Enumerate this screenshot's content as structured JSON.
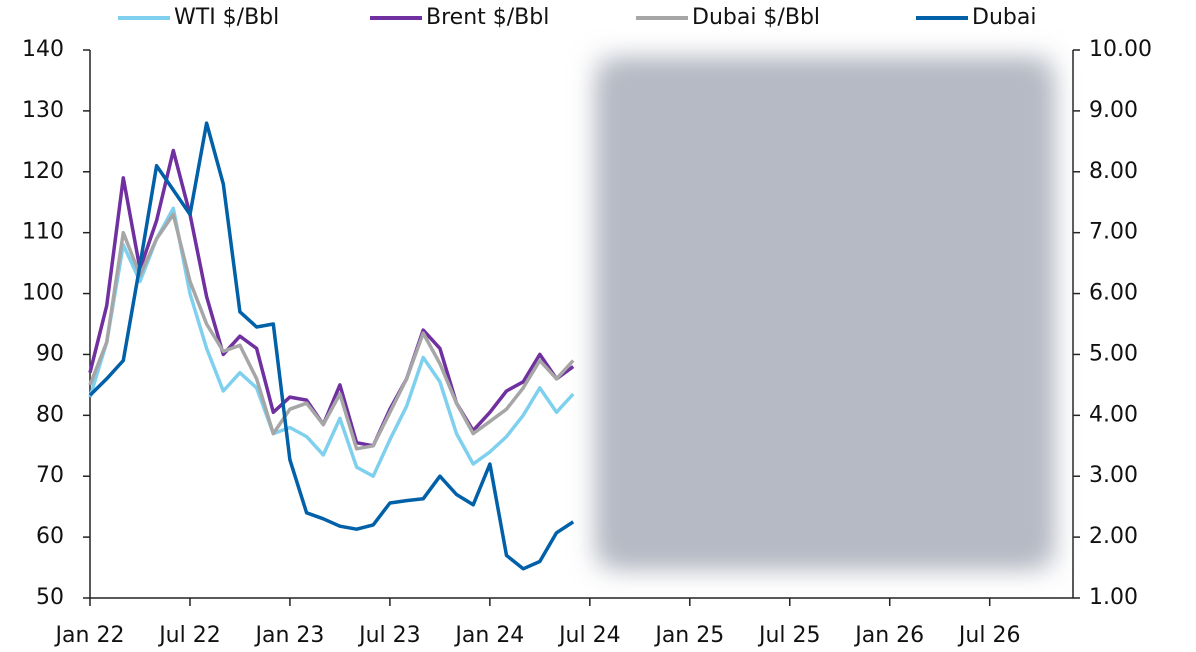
{
  "chart_data": {
    "type": "line",
    "categories": [
      "Jan 22",
      null,
      null,
      null,
      null,
      null,
      "Jul 22",
      null,
      null,
      null,
      null,
      null,
      "Jan 23",
      null,
      null,
      null,
      null,
      null,
      "Jul 23",
      null,
      null,
      null,
      null,
      null,
      "Jan 24",
      null,
      null,
      null,
      null,
      null,
      "Jul 24",
      null,
      null,
      null,
      null,
      null,
      "Jan 25",
      null,
      null,
      null,
      null,
      null,
      "Jul 25",
      null,
      null,
      null,
      null,
      null,
      "Jan 26",
      null,
      null,
      null,
      null,
      null,
      "Jul 26",
      null,
      null,
      null,
      null,
      null
    ],
    "series": [
      {
        "name": "WTI $/Bbl",
        "color": "#7fd0ef",
        "values": [
          83,
          92,
          108,
          102,
          109,
          114,
          100,
          91,
          84,
          87,
          84.5,
          77,
          78,
          76.5,
          73.5,
          79.5,
          71.5,
          70,
          76,
          81.5,
          89.5,
          85.5,
          77,
          72,
          74,
          76.5,
          80,
          84.5,
          80.5,
          83.5,
          null,
          null,
          null,
          null,
          null,
          null,
          null,
          null,
          null,
          null,
          null,
          null,
          null,
          null,
          null,
          null,
          null,
          null,
          null,
          null,
          null,
          null,
          null,
          null,
          null,
          null,
          null,
          null,
          null,
          null
        ]
      },
      {
        "name": "Brent $/Bbl",
        "color": "#7030a0",
        "values": [
          87,
          98,
          119,
          104,
          112,
          123.5,
          113,
          99.5,
          90,
          93,
          91,
          80.5,
          83,
          82.5,
          78.5,
          85,
          75.5,
          75,
          81,
          86,
          94,
          91,
          82,
          77.5,
          80.5,
          84,
          85.5,
          90,
          86,
          88,
          null,
          null,
          null,
          null,
          null,
          null,
          null,
          null,
          null,
          null,
          null,
          null,
          null,
          null,
          null,
          null,
          null,
          null,
          null,
          null,
          null,
          null,
          null,
          null,
          null,
          null,
          null,
          null,
          null,
          null
        ]
      },
      {
        "name": "Dubai $/Bbl",
        "color": "#a6a6a6",
        "values": [
          85,
          92,
          110,
          103,
          109,
          113,
          102,
          95,
          90.5,
          91.5,
          86,
          77,
          81,
          82,
          78.5,
          83.5,
          74.5,
          75,
          80.5,
          86,
          93.5,
          88.5,
          82,
          77,
          79,
          81,
          84.5,
          89,
          86,
          89,
          null,
          null,
          null,
          null,
          null,
          null,
          null,
          null,
          null,
          null,
          null,
          null,
          null,
          null,
          null,
          null,
          null,
          null,
          null,
          null,
          null,
          null,
          null,
          null,
          null,
          null,
          null,
          null,
          null,
          null
        ]
      },
      {
        "name": "Dubai",
        "color": "#0060a8",
        "axis": "y2",
        "values": [
          4.33,
          4.6,
          4.9,
          6.47,
          8.1,
          7.7,
          7.3,
          8.8,
          7.8,
          5.7,
          5.45,
          5.5,
          3.27,
          2.4,
          2.3,
          2.18,
          2.13,
          2.2,
          2.56,
          2.6,
          2.63,
          3.0,
          2.7,
          2.53,
          3.2,
          1.7,
          1.48,
          1.6,
          2.07,
          2.25,
          null,
          null,
          null,
          null,
          null,
          null,
          null,
          null,
          null,
          null,
          null,
          null,
          null,
          null,
          null,
          null,
          null,
          null,
          null,
          null,
          null,
          null,
          null,
          null,
          null,
          null,
          null,
          null,
          null,
          null
        ]
      }
    ],
    "ylim": [
      50,
      140
    ],
    "yticks": [
      50,
      60,
      70,
      80,
      90,
      100,
      110,
      120,
      130,
      140
    ],
    "y2lim": [
      1,
      10
    ],
    "y2ticks": [
      {
        "value": 1,
        "label": "1.00"
      },
      {
        "value": 2,
        "label": "2.00"
      },
      {
        "value": 3,
        "label": "3.00"
      },
      {
        "value": 4,
        "label": "4.00"
      },
      {
        "value": 5,
        "label": "5.00"
      },
      {
        "value": 6,
        "label": "6.00"
      },
      {
        "value": 7,
        "label": "7.00"
      },
      {
        "value": 8,
        "label": "8.00"
      },
      {
        "value": 9,
        "label": "9.00"
      },
      {
        "value": 10,
        "label": "10.00"
      }
    ],
    "legend": "top"
  }
}
